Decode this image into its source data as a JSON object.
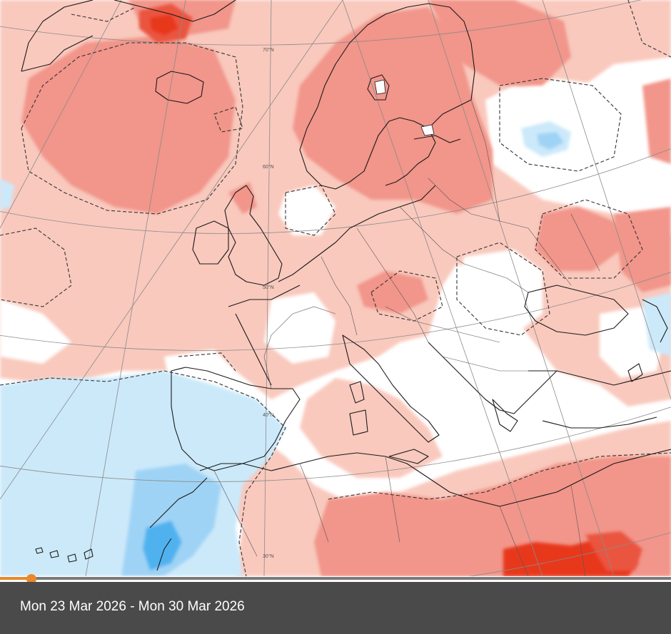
{
  "map": {
    "latitude_labels": [
      "70°N",
      "60°N",
      "50°N",
      "40°N",
      "30°N"
    ],
    "colors": {
      "warm_light": "#f9c9bd",
      "warm_medium": "#f2958a",
      "warm_strong": "#ea5440",
      "warm_extreme": "#e8371f",
      "cool_light": "#cce9fa",
      "cool_medium": "#9fd3f5",
      "cool_strong": "#4fb2ef",
      "neutral": "#ffffff",
      "coastline": "#1a1a1a",
      "borders": "#555555",
      "graticule": "#8a8a8a",
      "contour_dashed": "#333333"
    }
  },
  "timeline": {
    "progress_fraction": 0.047,
    "played_color": "#e8892b",
    "track_color": "#7a7a7a"
  },
  "footer": {
    "date_range": "Mon 23 Mar 2026 - Mon 30 Mar 2026"
  }
}
